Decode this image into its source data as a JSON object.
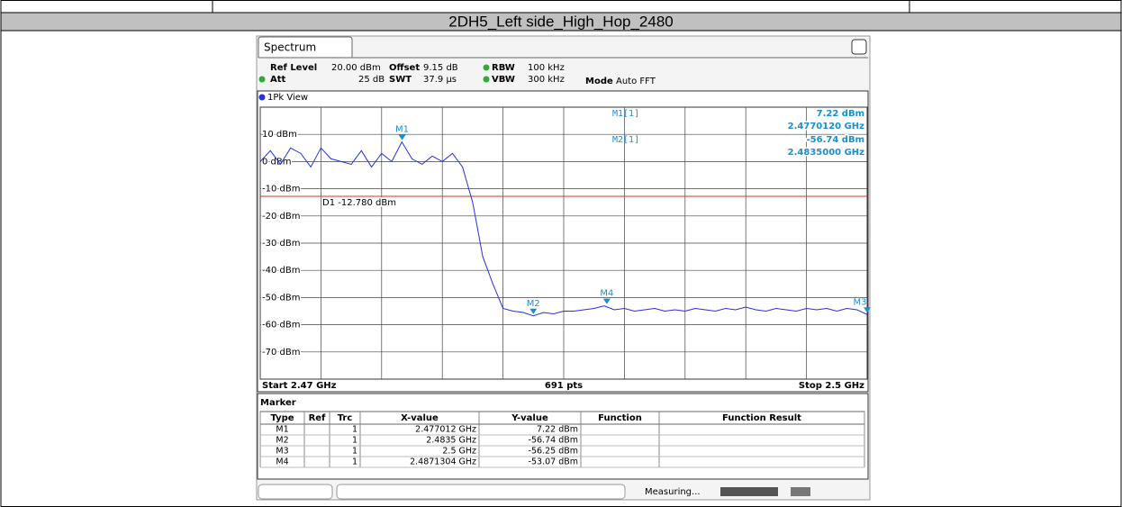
{
  "header": {
    "title": "2DH5_Left side_High_Hop_2480"
  },
  "tab": "Spectrum",
  "settings": {
    "ref_level_label": "Ref Level",
    "ref_level": "20.00 dBm",
    "offset_label": "Offset",
    "offset": "9.15 dB",
    "rbw_label": "RBW",
    "rbw": "100 kHz",
    "att_label": "Att",
    "att": "25 dB",
    "swt_label": "SWT",
    "swt": "37.9 µs",
    "vbw_label": "VBW",
    "vbw": "300 kHz",
    "mode_label": "Mode",
    "mode": "Auto FFT"
  },
  "view": "1Pk View",
  "chart_data": {
    "type": "line",
    "color": "#2233dd",
    "x": [
      2.47,
      2.4705,
      2.471,
      2.4715,
      2.472,
      2.4725,
      2.473,
      2.4735,
      2.474,
      2.4745,
      2.475,
      2.4755,
      2.476,
      2.4765,
      2.477,
      2.4775,
      2.478,
      2.4785,
      2.479,
      2.4795,
      2.48,
      2.4805,
      2.481,
      2.4815,
      2.482,
      2.4825,
      2.483,
      2.4835,
      2.484,
      2.4845,
      2.485,
      2.4855,
      2.486,
      2.4865,
      2.487,
      2.4875,
      2.488,
      2.4885,
      2.489,
      2.4895,
      2.49,
      2.4905,
      2.491,
      2.4915,
      2.492,
      2.4925,
      2.493,
      2.4935,
      2.494,
      2.4945,
      2.495,
      2.4955,
      2.496,
      2.4965,
      2.497,
      2.4975,
      2.498,
      2.4985,
      2.499,
      2.4995,
      2.5
    ],
    "values": [
      0,
      4,
      -1,
      5,
      3,
      -2,
      5,
      1,
      0,
      -1,
      4,
      -2,
      3,
      0,
      7.22,
      1,
      -1,
      2,
      0,
      3,
      -2,
      -15,
      -35,
      -45,
      -54,
      -55,
      -55.5,
      -56.74,
      -55.5,
      -56,
      -55,
      -55,
      -54.5,
      -54,
      -53.07,
      -54.5,
      -54,
      -55,
      -54.5,
      -54,
      -55,
      -54.5,
      -55,
      -54,
      -54.5,
      -55,
      -54,
      -54.5,
      -53.5,
      -54.5,
      -55,
      -54,
      -54.5,
      -55,
      -54,
      -54.5,
      -54,
      -55,
      -54,
      -54.5,
      -56.25
    ],
    "xlim": [
      2.47,
      2.5
    ],
    "xticks": [
      2.47,
      2.473,
      2.476,
      2.479,
      2.482,
      2.485,
      2.488,
      2.491,
      2.494,
      2.497,
      2.5
    ],
    "ylim": [
      -80,
      20
    ],
    "yticks": [
      {
        "value": 10,
        "label": "10 dBm"
      },
      {
        "value": 0,
        "label": "0 dBm"
      },
      {
        "value": -10,
        "label": "-10 dBm"
      },
      {
        "value": -20,
        "label": "-20 dBm"
      },
      {
        "value": -30,
        "label": "-30 dBm"
      },
      {
        "value": -40,
        "label": "-40 dBm"
      },
      {
        "value": -50,
        "label": "-50 dBm"
      },
      {
        "value": -60,
        "label": "-60 dBm"
      },
      {
        "value": -70,
        "label": "-70 dBm"
      }
    ],
    "grid": true,
    "threshold": {
      "value": -12.78,
      "label": "D1 -12.780 dBm",
      "color": "#e03030"
    },
    "markers": [
      {
        "name": "M1",
        "x": 2.477012,
        "y": 7.22
      },
      {
        "name": "M2",
        "x": 2.4835,
        "y": -56.74
      },
      {
        "name": "M3",
        "x": 2.5,
        "y": -56.25
      },
      {
        "name": "M4",
        "x": 2.4871304,
        "y": -53.07
      }
    ],
    "start_label": "Start 2.47 GHz",
    "points_label": "691 pts",
    "stop_label": "Stop 2.5 GHz"
  },
  "marker_readout": [
    {
      "label": "M1[1]",
      "value": "7.22 dBm",
      "freq": "2.4770120 GHz"
    },
    {
      "label": "M2[1]",
      "value": "-56.74 dBm",
      "freq": "2.4835000 GHz"
    }
  ],
  "marker_table": {
    "title": "Marker",
    "columns": [
      "Type",
      "Ref",
      "Trc",
      "X-value",
      "Y-value",
      "Function",
      "Function Result"
    ],
    "rows": [
      {
        "type": "M1",
        "trc": "1",
        "x_value": "2.477012 GHz",
        "y_value": "7.22 dBm"
      },
      {
        "type": "M2",
        "trc": "1",
        "x_value": "2.4835 GHz",
        "y_value": "-56.74 dBm"
      },
      {
        "type": "M3",
        "trc": "1",
        "x_value": "2.5 GHz",
        "y_value": "-56.25 dBm"
      },
      {
        "type": "M4",
        "trc": "1",
        "x_value": "2.4871304 GHz",
        "y_value": "-53.07 dBm"
      }
    ]
  },
  "status": "Measuring..."
}
